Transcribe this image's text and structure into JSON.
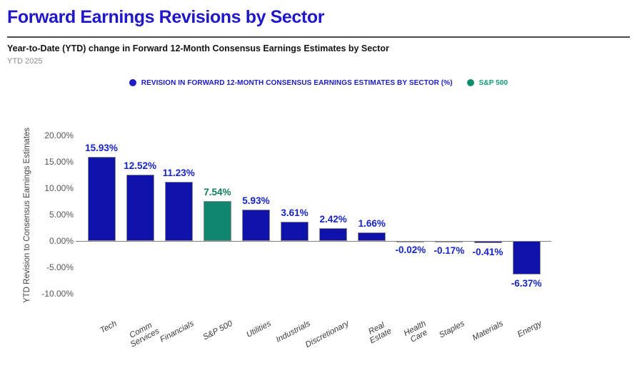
{
  "header": {
    "title": "Forward Earnings Revisions by Sector",
    "subtitle": "Year-to-Date (YTD) change in Forward 12-Month Consensus Earnings Estimates by Sector",
    "period": "YTD 2025"
  },
  "legend": [
    {
      "label": "REVISION IN FORWARD 12-MONTH CONSENSUS EARNINGS ESTIMATES BY SECTOR (%)",
      "color": "#1b1bc8",
      "text_color": "#1b1bc8"
    },
    {
      "label": "S&P 500",
      "color": "#0f8e6d",
      "text_color": "#10997a"
    }
  ],
  "chart_data": {
    "type": "bar",
    "title": "Forward Earnings Revisions by Sector",
    "xlabel": "",
    "ylabel": "YTD Revision to Consensus Earnings Estimates",
    "ylim": [
      -10,
      20
    ],
    "ytick_step": 5,
    "ytick_format": "percent_2dp",
    "grid": false,
    "legend_position": "top-center",
    "categories": [
      "Tech",
      "Comm Services",
      "Financials",
      "S&P 500",
      "Utilities",
      "Industrials",
      "Discretionary",
      "Real Estate",
      "Health Care",
      "Staples",
      "Materials",
      "Energy"
    ],
    "tick_labels": [
      "Tech",
      "Comm\nServices",
      "Financials",
      "S&P 500",
      "Utilities",
      "Industrials",
      "Discretionary",
      "Real\nEstate",
      "Health\nCare",
      "Staples",
      "Materials",
      "Energy"
    ],
    "values": [
      15.93,
      12.52,
      11.23,
      7.54,
      5.93,
      3.61,
      2.42,
      1.66,
      -0.02,
      -0.17,
      -0.41,
      -6.37
    ],
    "highlight_index": 3,
    "colors": {
      "bar": "#0e12aa",
      "bar_highlight": "#108570",
      "value_label": "#1524c9",
      "value_label_highlight": "#0e7e5c",
      "axis_line": "#808080",
      "tick_text": "#555555",
      "bar_border": "#8f8f8f"
    }
  }
}
